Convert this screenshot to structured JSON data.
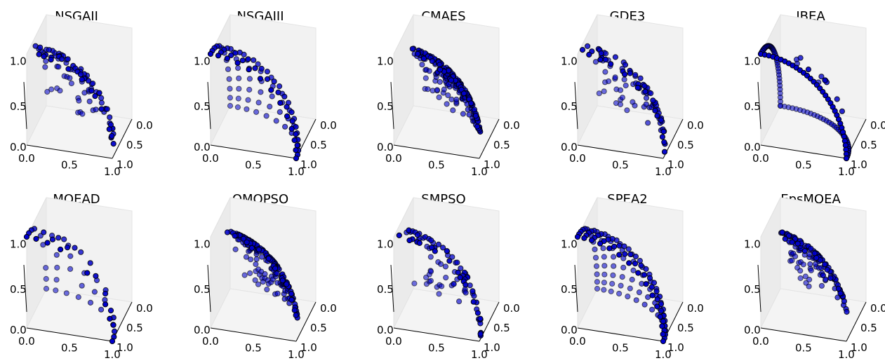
{
  "figure": {
    "point_color": "#0000cc",
    "point_edge_color": "#000000",
    "pane_color": "#f2f2f2"
  },
  "chart_data": [
    {
      "type": "scatter3d",
      "title": "NSGAII",
      "distribution": "random-sphere",
      "n_points": 90,
      "xticks": [
        "0.0",
        "0.5",
        "1.0"
      ],
      "yticks": [
        "0.0",
        "0.5",
        "1.0"
      ],
      "zticks": [
        "0.5",
        "1.0"
      ],
      "xlim": [
        0,
        1
      ],
      "ylim": [
        0,
        1
      ],
      "zlim": [
        0,
        1.2
      ]
    },
    {
      "type": "scatter3d",
      "title": "NSGAIII",
      "distribution": "uniform-sphere-grid",
      "n_points": 91,
      "xticks": [
        "0.0",
        "0.5",
        "1.0"
      ],
      "yticks": [
        "0.0",
        "0.5",
        "1.0"
      ],
      "zticks": [
        "0.5",
        "1.0"
      ],
      "xlim": [
        0,
        1
      ],
      "ylim": [
        0,
        1
      ],
      "zlim": [
        0,
        1.2
      ]
    },
    {
      "type": "scatter3d",
      "title": "CMAES",
      "distribution": "dense-sphere",
      "n_points": 200,
      "xticks": [
        "0.0",
        "0.5",
        "1.0"
      ],
      "yticks": [
        "0.0",
        "0.5",
        "1.0"
      ],
      "zticks": [
        "0.5",
        "1.0"
      ],
      "xlim": [
        0,
        1
      ],
      "ylim": [
        0,
        1
      ],
      "zlim": [
        0,
        1.2
      ]
    },
    {
      "type": "scatter3d",
      "title": "GDE3",
      "distribution": "random-sphere",
      "n_points": 95,
      "xticks": [
        "0.0",
        "0.5",
        "1.0"
      ],
      "yticks": [
        "0.0",
        "0.5",
        "1.0"
      ],
      "zticks": [
        "0.5",
        "1.0"
      ],
      "xlim": [
        0,
        1
      ],
      "ylim": [
        0,
        1
      ],
      "zlim": [
        0,
        1.2
      ]
    },
    {
      "type": "scatter3d",
      "title": "IBEA",
      "distribution": "sphere-boundary-arcs",
      "n_points": 110,
      "xticks": [
        "0.0",
        "0.5",
        "1.0"
      ],
      "yticks": [
        "0.0",
        "0.5",
        "1.0"
      ],
      "zticks": [
        "0.5",
        "1.0"
      ],
      "xlim": [
        0,
        1
      ],
      "ylim": [
        0,
        1
      ],
      "zlim": [
        0,
        1.2
      ]
    },
    {
      "type": "scatter3d",
      "title": "MOEAD",
      "distribution": "sparse-sphere-grid",
      "n_points": 70,
      "xticks": [
        "0.0",
        "0.5",
        "1.0"
      ],
      "yticks": [
        "0.0",
        "0.5",
        "1.0"
      ],
      "zticks": [
        "0.5",
        "1.0"
      ],
      "xlim": [
        0,
        1
      ],
      "ylim": [
        0,
        1
      ],
      "zlim": [
        0,
        1.2
      ]
    },
    {
      "type": "scatter3d",
      "title": "OMOPSO",
      "distribution": "dense-sphere",
      "n_points": 180,
      "xticks": [
        "0.0",
        "0.5",
        "1.0"
      ],
      "yticks": [
        "0.0",
        "0.5",
        "1.0"
      ],
      "zticks": [
        "0.5",
        "1.0"
      ],
      "xlim": [
        0,
        1
      ],
      "ylim": [
        0,
        1
      ],
      "zlim": [
        0,
        1.2
      ]
    },
    {
      "type": "scatter3d",
      "title": "SMPSO",
      "distribution": "random-sphere",
      "n_points": 90,
      "xticks": [
        "0.0",
        "0.5",
        "1.0"
      ],
      "yticks": [
        "0.0",
        "0.5",
        "1.0"
      ],
      "zticks": [
        "0.5",
        "1.0"
      ],
      "xlim": [
        0,
        1
      ],
      "ylim": [
        0,
        1
      ],
      "zlim": [
        0,
        1.2
      ]
    },
    {
      "type": "scatter3d",
      "title": "SPEA2",
      "distribution": "uniform-sphere-grid",
      "n_points": 120,
      "xticks": [
        "0.0",
        "0.5",
        "1.0"
      ],
      "yticks": [
        "0.0",
        "0.5",
        "1.0"
      ],
      "zticks": [
        "0.5",
        "1.0"
      ],
      "xlim": [
        0,
        1
      ],
      "ylim": [
        0,
        1
      ],
      "zlim": [
        0,
        1.2
      ]
    },
    {
      "type": "scatter3d",
      "title": "EpsMOEA",
      "distribution": "dense-sphere",
      "n_points": 130,
      "xticks": [
        "0.0",
        "0.5",
        "1.0"
      ],
      "yticks": [
        "0.0",
        "0.5",
        "1.0"
      ],
      "zticks": [
        "0.5",
        "1.0"
      ],
      "xlim": [
        0,
        1
      ],
      "ylim": [
        0,
        1
      ],
      "zlim": [
        0,
        1.2
      ]
    }
  ]
}
